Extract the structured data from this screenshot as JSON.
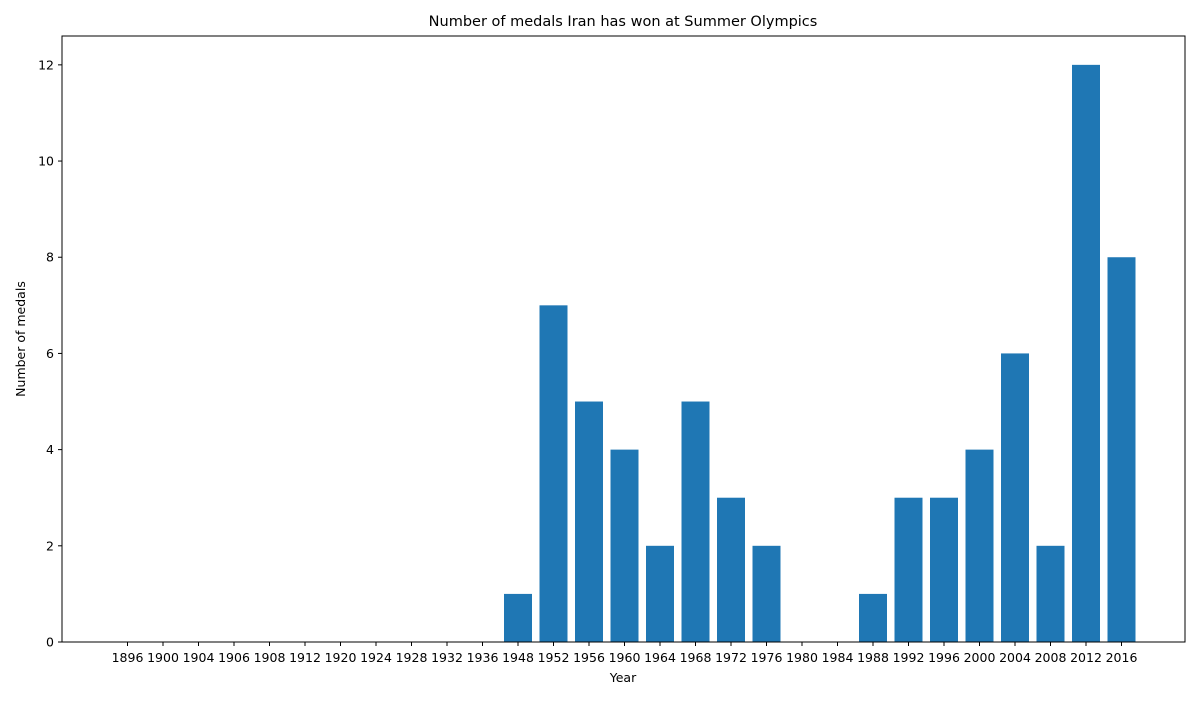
{
  "chart_data": {
    "type": "bar",
    "title": "Number of medals Iran has won at Summer Olympics",
    "xlabel": "Year",
    "ylabel": "Number of medals",
    "categories": [
      "1896",
      "1900",
      "1904",
      "1906",
      "1908",
      "1912",
      "1920",
      "1924",
      "1928",
      "1932",
      "1936",
      "1948",
      "1952",
      "1956",
      "1960",
      "1964",
      "1968",
      "1972",
      "1976",
      "1980",
      "1984",
      "1988",
      "1992",
      "1996",
      "2000",
      "2004",
      "2008",
      "2012",
      "2016"
    ],
    "values": [
      0,
      0,
      0,
      0,
      0,
      0,
      0,
      0,
      0,
      0,
      0,
      1,
      7,
      5,
      4,
      2,
      5,
      3,
      2,
      0,
      0,
      1,
      3,
      3,
      4,
      6,
      2,
      12,
      8
    ],
    "ylim": [
      0,
      12.6
    ],
    "yticks": [
      0,
      2,
      4,
      6,
      8,
      10,
      12
    ],
    "grid": false,
    "bar_color": "#1f77b4"
  }
}
